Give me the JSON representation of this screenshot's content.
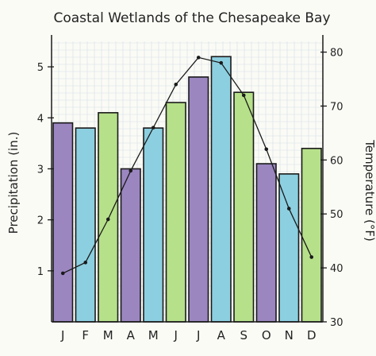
{
  "chart_data": {
    "type": "bar",
    "title": "Coastal Wetlands of the Chesapeake Bay",
    "categories": [
      "J",
      "F",
      "M",
      "A",
      "M",
      "J",
      "J",
      "A",
      "S",
      "O",
      "N",
      "D"
    ],
    "series": [
      {
        "name": "",
        "kind": "bar",
        "axis": "left",
        "values": [
          3.9,
          3.8,
          4.1,
          3.0,
          3.8,
          4.3,
          4.8,
          5.2,
          4.5,
          3.1,
          2.9,
          3.4
        ],
        "colors": [
          "#9b86c0",
          "#8ccfe0",
          "#b6e08a",
          "#9b86c0",
          "#8ccfe0",
          "#b6e08a",
          "#9b86c0",
          "#8ccfe0",
          "#b6e08a",
          "#9b86c0",
          "#8ccfe0",
          "#b6e08a"
        ]
      },
      {
        "name": "",
        "kind": "line",
        "axis": "right",
        "values": [
          39,
          41,
          49,
          58,
          66,
          74,
          79,
          78,
          72,
          62,
          51,
          42
        ]
      }
    ],
    "ylabel": "Precipitation (in.)",
    "ylim": [
      0,
      5.5
    ],
    "yticks": [
      "1",
      "2",
      "3",
      "4",
      "5"
    ],
    "y2label": "Temperature (°F)",
    "y2lim": [
      30,
      82
    ],
    "y2ticks": [
      "30",
      "40",
      "50",
      "60",
      "70",
      "80"
    ],
    "grid": true,
    "legend": "none"
  }
}
